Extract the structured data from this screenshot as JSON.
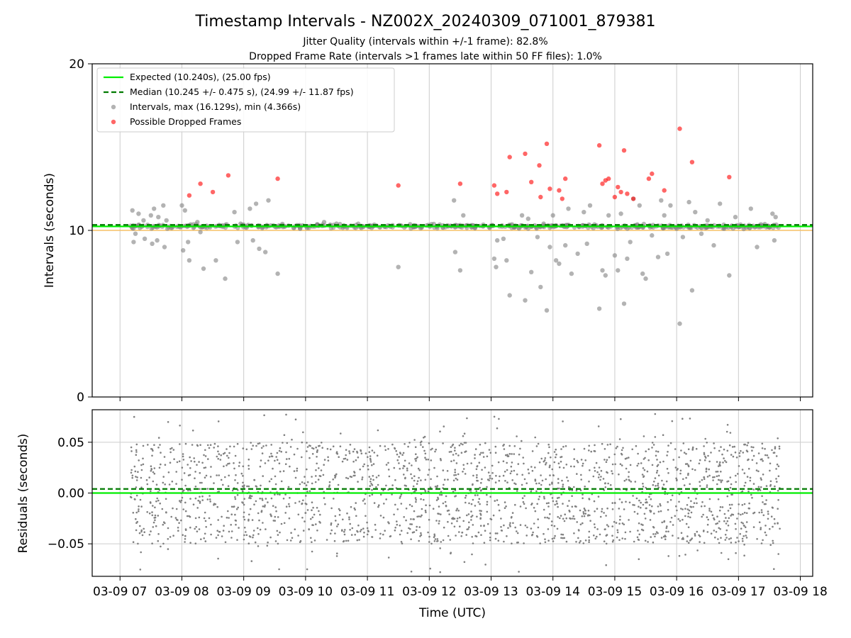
{
  "chart_data": [
    {
      "type": "scatter",
      "title": "Timestamp Intervals - NZ002X_20240309_071001_879381",
      "subtitle_1": "Jitter Quality (intervals within +/-1 frame): 82.8%",
      "subtitle_2": "Dropped Frame Rate (intervals >1 frames late within 50 FF files): 1.0%",
      "ylabel": "Intervals (seconds)",
      "ylim": [
        0,
        20
      ],
      "y_ticks": [
        "0",
        "10",
        "20"
      ],
      "x_unit": "hours UTC on 03-09",
      "xlim": [
        6.55,
        18.2
      ],
      "grid": true,
      "legend_position": "top-left",
      "legend": [
        "Expected (10.240s), (25.00 fps)",
        "Median (10.245 +/- 0.475 s), (24.99 +/- 11.87 fps)",
        "Intervals, max (16.129s), min (4.366s)",
        "Possible Dropped Frames"
      ],
      "expected_interval": 10.24,
      "median_interval": 10.245,
      "lower_reference_line": 10.0,
      "data_start_hour": 7.17,
      "data_end_hour": 17.67,
      "series": [
        {
          "name": "Intervals, max (16.129s), min (4.366s)",
          "color": "#808080",
          "points": [
            [
              7.2,
              11.2
            ],
            [
              7.22,
              9.3
            ],
            [
              7.25,
              9.8
            ],
            [
              7.3,
              11.0
            ],
            [
              7.38,
              10.6
            ],
            [
              7.4,
              9.5
            ],
            [
              7.5,
              10.9
            ],
            [
              7.52,
              9.2
            ],
            [
              7.55,
              11.3
            ],
            [
              7.6,
              9.4
            ],
            [
              7.62,
              10.8
            ],
            [
              7.7,
              11.5
            ],
            [
              7.72,
              9.0
            ],
            [
              7.75,
              10.6
            ],
            [
              8.0,
              11.5
            ],
            [
              8.02,
              8.8
            ],
            [
              8.05,
              11.2
            ],
            [
              8.1,
              9.3
            ],
            [
              8.12,
              8.2
            ],
            [
              8.25,
              10.5
            ],
            [
              8.3,
              9.9
            ],
            [
              8.35,
              7.7
            ],
            [
              8.55,
              8.2
            ],
            [
              8.7,
              7.1
            ],
            [
              8.85,
              11.1
            ],
            [
              8.9,
              9.3
            ],
            [
              8.95,
              10.4
            ],
            [
              9.1,
              11.3
            ],
            [
              9.15,
              9.4
            ],
            [
              9.2,
              11.6
            ],
            [
              9.25,
              8.9
            ],
            [
              9.3,
              10.2
            ],
            [
              9.35,
              8.7
            ],
            [
              9.4,
              11.8
            ],
            [
              9.55,
              7.4
            ],
            [
              10.3,
              10.5
            ],
            [
              10.5,
              10.4
            ],
            [
              11.5,
              7.8
            ],
            [
              12.4,
              11.8
            ],
            [
              12.42,
              8.7
            ],
            [
              12.5,
              7.6
            ],
            [
              12.55,
              10.9
            ],
            [
              12.6,
              10.3
            ],
            [
              13.05,
              8.3
            ],
            [
              13.08,
              7.8
            ],
            [
              13.1,
              9.4
            ],
            [
              13.2,
              9.5
            ],
            [
              13.25,
              8.2
            ],
            [
              13.3,
              6.1
            ],
            [
              13.5,
              10.9
            ],
            [
              13.55,
              5.8
            ],
            [
              13.6,
              10.7
            ],
            [
              13.65,
              7.5
            ],
            [
              13.75,
              9.6
            ],
            [
              13.8,
              6.6
            ],
            [
              13.85,
              10.4
            ],
            [
              13.9,
              5.2
            ],
            [
              13.95,
              9.0
            ],
            [
              14.0,
              10.9
            ],
            [
              14.05,
              8.2
            ],
            [
              14.1,
              8.0
            ],
            [
              14.2,
              9.1
            ],
            [
              14.25,
              11.3
            ],
            [
              14.3,
              7.4
            ],
            [
              14.4,
              8.6
            ],
            [
              14.5,
              11.1
            ],
            [
              14.55,
              9.2
            ],
            [
              14.6,
              11.5
            ],
            [
              14.7,
              10.3
            ],
            [
              14.75,
              5.3
            ],
            [
              14.8,
              7.6
            ],
            [
              14.85,
              7.3
            ],
            [
              14.9,
              10.9
            ],
            [
              15.0,
              8.5
            ],
            [
              15.05,
              7.6
            ],
            [
              15.1,
              11.0
            ],
            [
              15.15,
              5.6
            ],
            [
              15.2,
              8.3
            ],
            [
              15.25,
              9.3
            ],
            [
              15.3,
              11.9
            ],
            [
              15.4,
              11.5
            ],
            [
              15.45,
              7.4
            ],
            [
              15.5,
              7.1
            ],
            [
              15.6,
              9.7
            ],
            [
              15.7,
              8.4
            ],
            [
              15.75,
              11.8
            ],
            [
              15.8,
              10.9
            ],
            [
              15.85,
              8.6
            ],
            [
              15.9,
              11.5
            ],
            [
              16.0,
              10.1
            ],
            [
              16.05,
              4.4
            ],
            [
              16.1,
              9.6
            ],
            [
              16.2,
              11.7
            ],
            [
              16.25,
              6.4
            ],
            [
              16.3,
              11.1
            ],
            [
              16.4,
              9.8
            ],
            [
              16.5,
              10.6
            ],
            [
              16.6,
              9.1
            ],
            [
              16.7,
              11.6
            ],
            [
              16.85,
              7.3
            ],
            [
              16.95,
              10.8
            ],
            [
              17.2,
              11.3
            ],
            [
              17.3,
              9.0
            ],
            [
              17.55,
              11.0
            ],
            [
              17.58,
              9.4
            ],
            [
              17.6,
              10.8
            ]
          ]
        },
        {
          "name": "Possible Dropped Frames",
          "color": "#ff0000",
          "points": [
            [
              8.12,
              12.1
            ],
            [
              8.3,
              12.8
            ],
            [
              8.5,
              12.3
            ],
            [
              8.75,
              13.3
            ],
            [
              9.55,
              13.1
            ],
            [
              11.5,
              12.7
            ],
            [
              12.5,
              12.8
            ],
            [
              13.05,
              12.7
            ],
            [
              13.1,
              12.2
            ],
            [
              13.25,
              12.3
            ],
            [
              13.3,
              14.4
            ],
            [
              13.55,
              14.6
            ],
            [
              13.65,
              12.9
            ],
            [
              13.78,
              13.9
            ],
            [
              13.8,
              12.0
            ],
            [
              13.9,
              15.2
            ],
            [
              13.95,
              12.5
            ],
            [
              14.1,
              12.4
            ],
            [
              14.15,
              11.9
            ],
            [
              14.2,
              13.1
            ],
            [
              14.75,
              15.1
            ],
            [
              14.8,
              12.8
            ],
            [
              14.85,
              13.0
            ],
            [
              14.9,
              13.1
            ],
            [
              15.0,
              12.0
            ],
            [
              15.05,
              12.6
            ],
            [
              15.1,
              12.3
            ],
            [
              15.15,
              14.8
            ],
            [
              15.2,
              12.2
            ],
            [
              15.3,
              11.9
            ],
            [
              15.55,
              13.1
            ],
            [
              15.6,
              13.4
            ],
            [
              15.8,
              12.4
            ],
            [
              16.05,
              16.1
            ],
            [
              16.25,
              14.1
            ],
            [
              16.85,
              13.2
            ]
          ]
        }
      ]
    },
    {
      "type": "scatter",
      "ylabel": "Residuals (seconds)",
      "xlabel": "Time (UTC)",
      "ylim": [
        -0.082,
        0.082
      ],
      "y_ticks": [
        "0.05",
        "0.00",
        "−0.05"
      ],
      "x_tick_labels": [
        "03-09 07",
        "03-09 08",
        "03-09 09",
        "03-09 10",
        "03-09 11",
        "03-09 12",
        "03-09 13",
        "03-09 14",
        "03-09 15",
        "03-09 16",
        "03-09 17",
        "03-09 18"
      ],
      "x_ticks_hours": [
        7,
        8,
        9,
        10,
        11,
        12,
        13,
        14,
        15,
        16,
        17,
        18
      ],
      "grid": true,
      "expected_residual": 0.0,
      "median_residual": 0.004,
      "residual_spread": "about ±0.05 s around 0, dense band, occasional points to ±0.08",
      "series": [
        {
          "name": "Residuals",
          "color": "#808080"
        }
      ]
    }
  ],
  "colors": {
    "expected": "#00ee00",
    "median": "#007a00",
    "intervals": "#808080",
    "dropped": "#ff0000",
    "reference_line": "#f5c066",
    "grid": "#cccccc"
  }
}
